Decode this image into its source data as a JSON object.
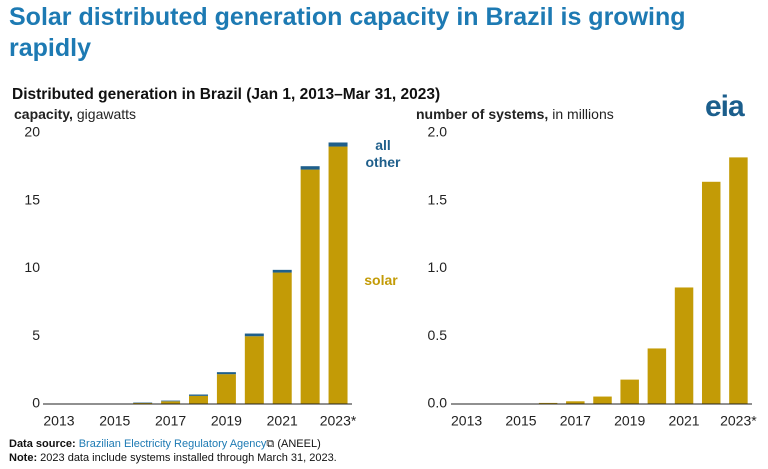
{
  "title": "Solar distributed generation capacity in Brazil is growing rapidly",
  "subtitle": "Distributed generation in Brazil (Jan 1, 2013–Mar 31, 2023)",
  "logo": "eia",
  "source": {
    "label": "Data source:",
    "text": "Brazilian Electricity Regulatory Agency",
    "suffix": "(ANEEL)"
  },
  "note": {
    "label": "Note:",
    "text": "2023 data include systems installed through March 31, 2023."
  },
  "chart_data": [
    {
      "type": "stacked_bar",
      "y_label": [
        "capacity,",
        "gigawatts"
      ],
      "categories": [
        "2013",
        null,
        "2015",
        null,
        "2017",
        null,
        "2019",
        null,
        "2021",
        null,
        "2023*"
      ],
      "series": [
        {
          "name": "solar",
          "color": "#c39b06",
          "values": [
            0,
            0,
            0.02,
            0.08,
            0.2,
            0.6,
            2.2,
            5.0,
            9.7,
            17.3,
            19.0
          ]
        },
        {
          "name": "all other",
          "color": "#1f5f8b",
          "values": [
            0,
            0,
            0.01,
            0.03,
            0.05,
            0.1,
            0.15,
            0.2,
            0.2,
            0.25,
            0.3
          ]
        }
      ],
      "ylim": [
        0,
        20
      ],
      "yticks": [
        0,
        5,
        10,
        15,
        20
      ],
      "grid": false
    },
    {
      "type": "bar",
      "y_label": [
        "number of systems,",
        "in millions"
      ],
      "categories": [
        "2013",
        null,
        "2015",
        null,
        "2017",
        null,
        "2019",
        null,
        "2021",
        null,
        "2023*"
      ],
      "color": "#c39b06",
      "values": [
        0.001,
        0.001,
        0.002,
        0.008,
        0.02,
        0.055,
        0.18,
        0.41,
        0.86,
        1.64,
        1.82
      ],
      "ylim": [
        0,
        2
      ],
      "yticks": [
        {
          "value": 0,
          "label": "0.0"
        },
        0.5,
        {
          "value": 1,
          "label": "1.0"
        },
        1.5,
        {
          "value": 2,
          "label": "2.0"
        }
      ],
      "grid": false
    }
  ]
}
